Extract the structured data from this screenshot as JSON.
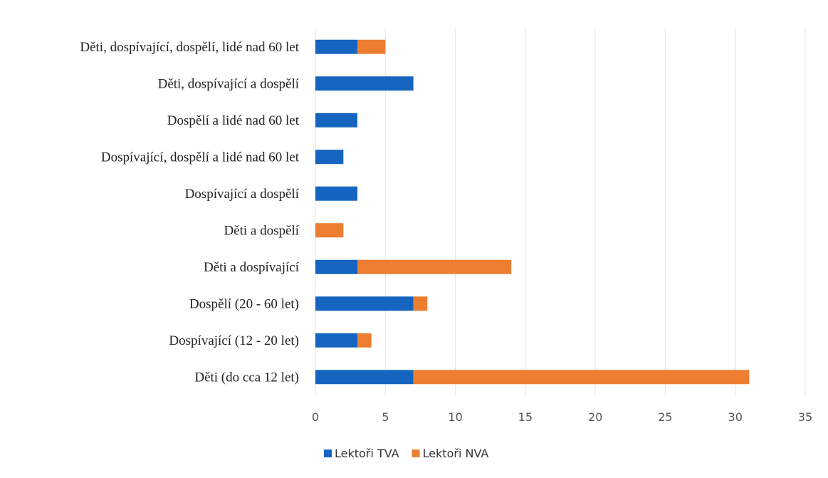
{
  "chart_data": {
    "type": "bar",
    "orientation": "horizontal",
    "stacked": true,
    "categories": [
      "Děti, dospívající, dospělí, lidé nad 60 let",
      "Děti, dospívající a dospělí",
      "Dospělí a lidé nad 60 let",
      "Dospívající, dospělí a lidé nad 60 let",
      "Dospívající a dospělí",
      "Děti a dospělí",
      "Děti a dospívající",
      "Dospělí (20 - 60 let)",
      "Dospívající (12 - 20 let)",
      "Děti (do cca 12 let)"
    ],
    "series": [
      {
        "name": "Lektoři TVA",
        "color": "#1565c0",
        "values": [
          3,
          7,
          3,
          2,
          3,
          0,
          3,
          7,
          3,
          7
        ]
      },
      {
        "name": "Lektoři NVA",
        "color": "#ed7d31",
        "values": [
          2,
          0,
          0,
          0,
          0,
          2,
          11,
          1,
          1,
          24
        ]
      }
    ],
    "xlim": [
      0,
      35
    ],
    "xticks": [
      0,
      5,
      10,
      15,
      20,
      25,
      30,
      35
    ],
    "grid": true,
    "legend": "bottom"
  }
}
